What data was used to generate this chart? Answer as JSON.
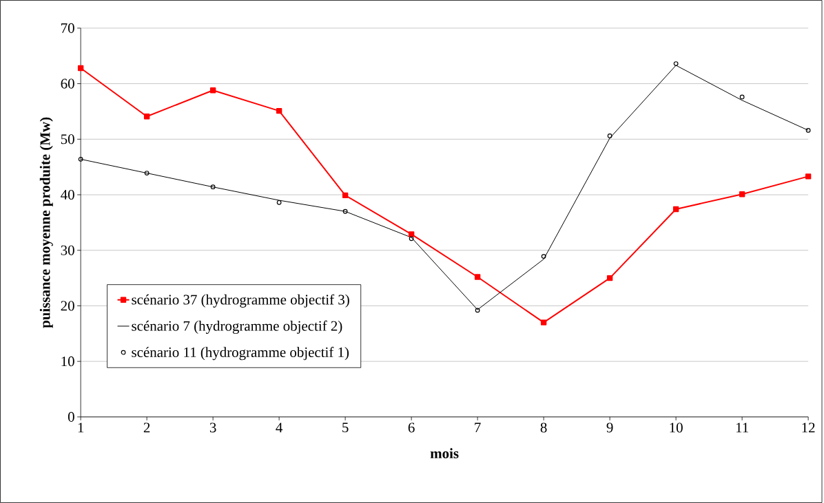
{
  "chart_data": {
    "type": "line",
    "xlabel": "mois",
    "ylabel": "puissance moyenne produite (Mw)",
    "x": [
      1,
      2,
      3,
      4,
      5,
      6,
      7,
      8,
      9,
      10,
      11,
      12
    ],
    "xlim": [
      1,
      12
    ],
    "xticks": [
      1,
      2,
      3,
      4,
      5,
      6,
      7,
      8,
      9,
      10,
      11,
      12
    ],
    "ylim": [
      0,
      70
    ],
    "yticks": [
      0,
      10,
      20,
      30,
      40,
      50,
      60,
      70
    ],
    "grid": "y",
    "legend": "bottom left",
    "series": [
      {
        "name": "scénario 37 (hydrogramme objectif 3)",
        "color": "#ff0000",
        "marker": "square",
        "values": [
          62.8,
          54.1,
          58.8,
          55.1,
          39.9,
          32.9,
          25.2,
          17.0,
          25.0,
          37.4,
          40.1,
          43.3
        ]
      },
      {
        "name": "scénario 7 (hydrogramme objectif 2)",
        "color": "#000000",
        "marker": "none",
        "values": [
          46.4,
          43.9,
          41.4,
          39.0,
          37.0,
          32.3,
          19.3,
          28.4,
          50.2,
          63.3,
          57.0,
          51.6
        ]
      },
      {
        "name": "scénario 11 (hydrogramme objectif 1)",
        "type": "scatter",
        "color": "#000000",
        "marker": "circle",
        "values": [
          46.4,
          43.9,
          41.4,
          38.6,
          37.0,
          32.1,
          19.2,
          28.9,
          50.6,
          63.6,
          57.6,
          51.6
        ]
      }
    ]
  }
}
